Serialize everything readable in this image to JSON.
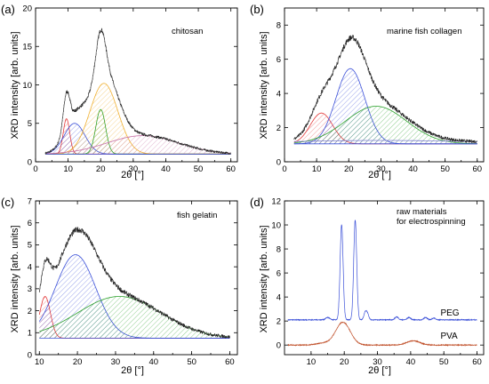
{
  "chart_data": [
    {
      "type": "line",
      "panel_label": "(a)",
      "annotation": "chitosan",
      "ylabel": "XRD intensity [arb. units]",
      "xlabel": "2θ [°]",
      "xlim": [
        0,
        62
      ],
      "ylim": [
        0,
        20
      ],
      "xticks": [
        0,
        10,
        20,
        30,
        40,
        50,
        60
      ],
      "yticks": [
        0,
        5,
        10,
        15,
        20
      ],
      "baseline": 1.0,
      "components": [
        {
          "color": "#e33b3b",
          "center": 9.5,
          "amplitude": 4.6,
          "width": 1.0
        },
        {
          "color": "#3b50d8",
          "center": 12.0,
          "amplitude": 4.0,
          "width": 3.2
        },
        {
          "color": "#2aa02a",
          "center": 20.0,
          "amplitude": 5.8,
          "width": 1.5
        },
        {
          "color": "#f0b030",
          "center": 21.0,
          "amplitude": 9.2,
          "width": 4.3
        },
        {
          "color": "#c76fa6",
          "center": 33.0,
          "amplitude": 2.4,
          "width": 11.0
        }
      ],
      "x_start": 3,
      "x_end": 60
    },
    {
      "type": "line",
      "panel_label": "(b)",
      "annotation": "marine fish collagen",
      "ylabel": "XRD intensity [arb. units]",
      "xlabel": "2θ [°]",
      "xlim": [
        0,
        62
      ],
      "ylim": [
        0,
        9
      ],
      "xticks": [
        0,
        10,
        20,
        30,
        40,
        50,
        60
      ],
      "yticks": [
        0,
        2,
        4,
        6,
        8
      ],
      "baseline": 1.05,
      "components": [
        {
          "color": "#e33b3b",
          "center": 11.5,
          "amplitude": 1.8,
          "width": 3.5
        },
        {
          "color": "#3b50d8",
          "center": 20.5,
          "amplitude": 4.4,
          "width": 4.5
        },
        {
          "color": "#2aa02a",
          "center": 28.5,
          "amplitude": 2.2,
          "width": 9.5
        },
        {
          "color": "#7f7fd0",
          "center": 30.0,
          "amplitude": 0.2,
          "width": 30.0
        }
      ],
      "x_start": 3,
      "x_end": 60
    },
    {
      "type": "line",
      "panel_label": "(c)",
      "annotation": "fish gelatin",
      "ylabel": "XRD intensity [arb. units]",
      "xlabel": "2θ [°]",
      "xlim": [
        9,
        62
      ],
      "ylim": [
        0,
        7
      ],
      "xticks": [
        10,
        20,
        30,
        40,
        50,
        60
      ],
      "yticks": [
        0,
        1,
        2,
        3,
        4,
        5,
        6,
        7
      ],
      "baseline": 0.75,
      "components": [
        {
          "color": "#e33b3b",
          "center": 11.5,
          "amplitude": 1.9,
          "width": 1.4
        },
        {
          "color": "#3b50d8",
          "center": 19.5,
          "amplitude": 3.8,
          "width": 5.3
        },
        {
          "color": "#2aa02a",
          "center": 31.0,
          "amplitude": 1.9,
          "width": 11.0
        }
      ],
      "x_start": 10,
      "x_end": 60
    },
    {
      "type": "line",
      "panel_label": "(d)",
      "annotation_lines": [
        "raw materials",
        "for electrospinning"
      ],
      "ylabel": "XRD intensity [arb. units]",
      "xlabel": "2θ [°]",
      "xlim": [
        2,
        62
      ],
      "ylim": [
        -0.8,
        12
      ],
      "xticks": [
        10,
        20,
        30,
        40,
        50,
        60
      ],
      "yticks": [
        0,
        2,
        4,
        6,
        8,
        10,
        12
      ],
      "series": [
        {
          "name": "PEG",
          "color": "#3b50d8",
          "offset": 2.1,
          "peaks": [
            [
              19.2,
              7.9,
              0.45
            ],
            [
              23.3,
              8.3,
              0.45
            ],
            [
              26.3,
              0.6,
              0.4
            ],
            [
              27.0,
              0.5,
              0.4
            ],
            [
              15.0,
              0.2,
              0.6
            ],
            [
              35.8,
              0.25,
              0.5
            ],
            [
              39.5,
              0.2,
              0.5
            ],
            [
              44.5,
              0.2,
              0.5
            ],
            [
              47.0,
              0.15,
              0.5
            ]
          ]
        },
        {
          "name": "PVA",
          "color": "#c0502a",
          "offset": 0.0,
          "peaks": [
            [
              19.6,
              1.9,
              2.2
            ],
            [
              13.5,
              0.15,
              2.0
            ],
            [
              40.8,
              0.35,
              2.0
            ]
          ]
        }
      ],
      "x_start": 3,
      "x_end": 60
    }
  ]
}
